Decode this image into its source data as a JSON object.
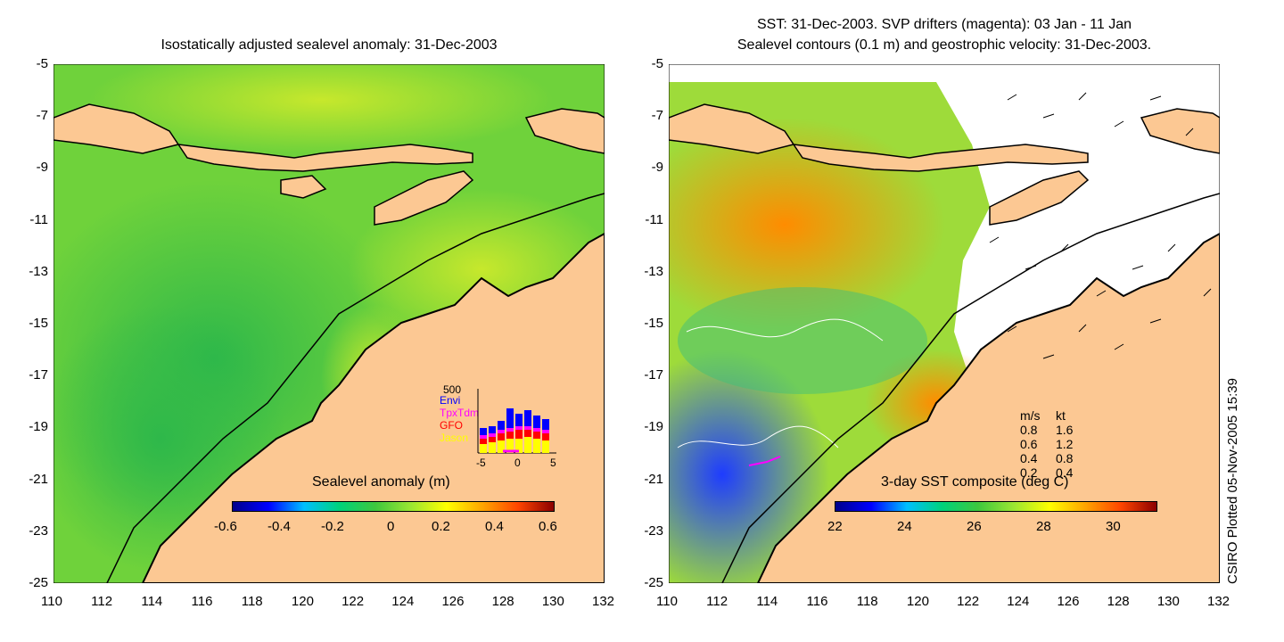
{
  "left_panel": {
    "title": "Isostatically adjusted sealevel anomaly: 31-Dec-2003",
    "colorbar": {
      "label": "Sealevel anomaly (m)",
      "ticks": [
        "-0.6",
        "-0.4",
        "-0.2",
        "0",
        "0.2",
        "0.4",
        "0.6"
      ]
    },
    "histogram": {
      "ymax_label": "500",
      "legend": [
        {
          "name": "Envi",
          "color": "#0000ff"
        },
        {
          "name": "TpxTdm",
          "color": "#ff00ff"
        },
        {
          "name": "GFO",
          "color": "#ff0000"
        },
        {
          "name": "Jason",
          "color": "#ffff00"
        }
      ],
      "x_ticks": [
        "-5",
        "0",
        "5"
      ]
    }
  },
  "right_panel": {
    "title_line1": "SST: 31-Dec-2003. SVP drifters (magenta): 03 Jan - 11 Jan",
    "title_line2": "Sealevel contours (0.1 m) and geostrophic velocity: 31-Dec-2003.",
    "colorbar": {
      "label": "3-day SST composite (deg C)",
      "ticks": [
        "22",
        "24",
        "26",
        "28",
        "30"
      ]
    },
    "velocity_legend": {
      "header_ms": "m/s",
      "header_kt": "kt",
      "rows": [
        {
          "ms": "0.8",
          "kt": "1.6"
        },
        {
          "ms": "0.6",
          "kt": "1.2"
        },
        {
          "ms": "0.4",
          "kt": "0.8"
        },
        {
          "ms": "0.2",
          "kt": "0.4"
        }
      ]
    }
  },
  "axes": {
    "lat_ticks": [
      "-5",
      "-7",
      "-9",
      "-11",
      "-13",
      "-15",
      "-17",
      "-19",
      "-21",
      "-23",
      "-25"
    ],
    "lon_ticks": [
      "110",
      "112",
      "114",
      "116",
      "118",
      "120",
      "122",
      "124",
      "126",
      "128",
      "130",
      "132"
    ]
  },
  "credit": "CSIRO Plotted 05-Nov-2005 15:39",
  "colors": {
    "land": "#fcc893",
    "sea_base": "#5fd13b",
    "coast": "#000000"
  }
}
